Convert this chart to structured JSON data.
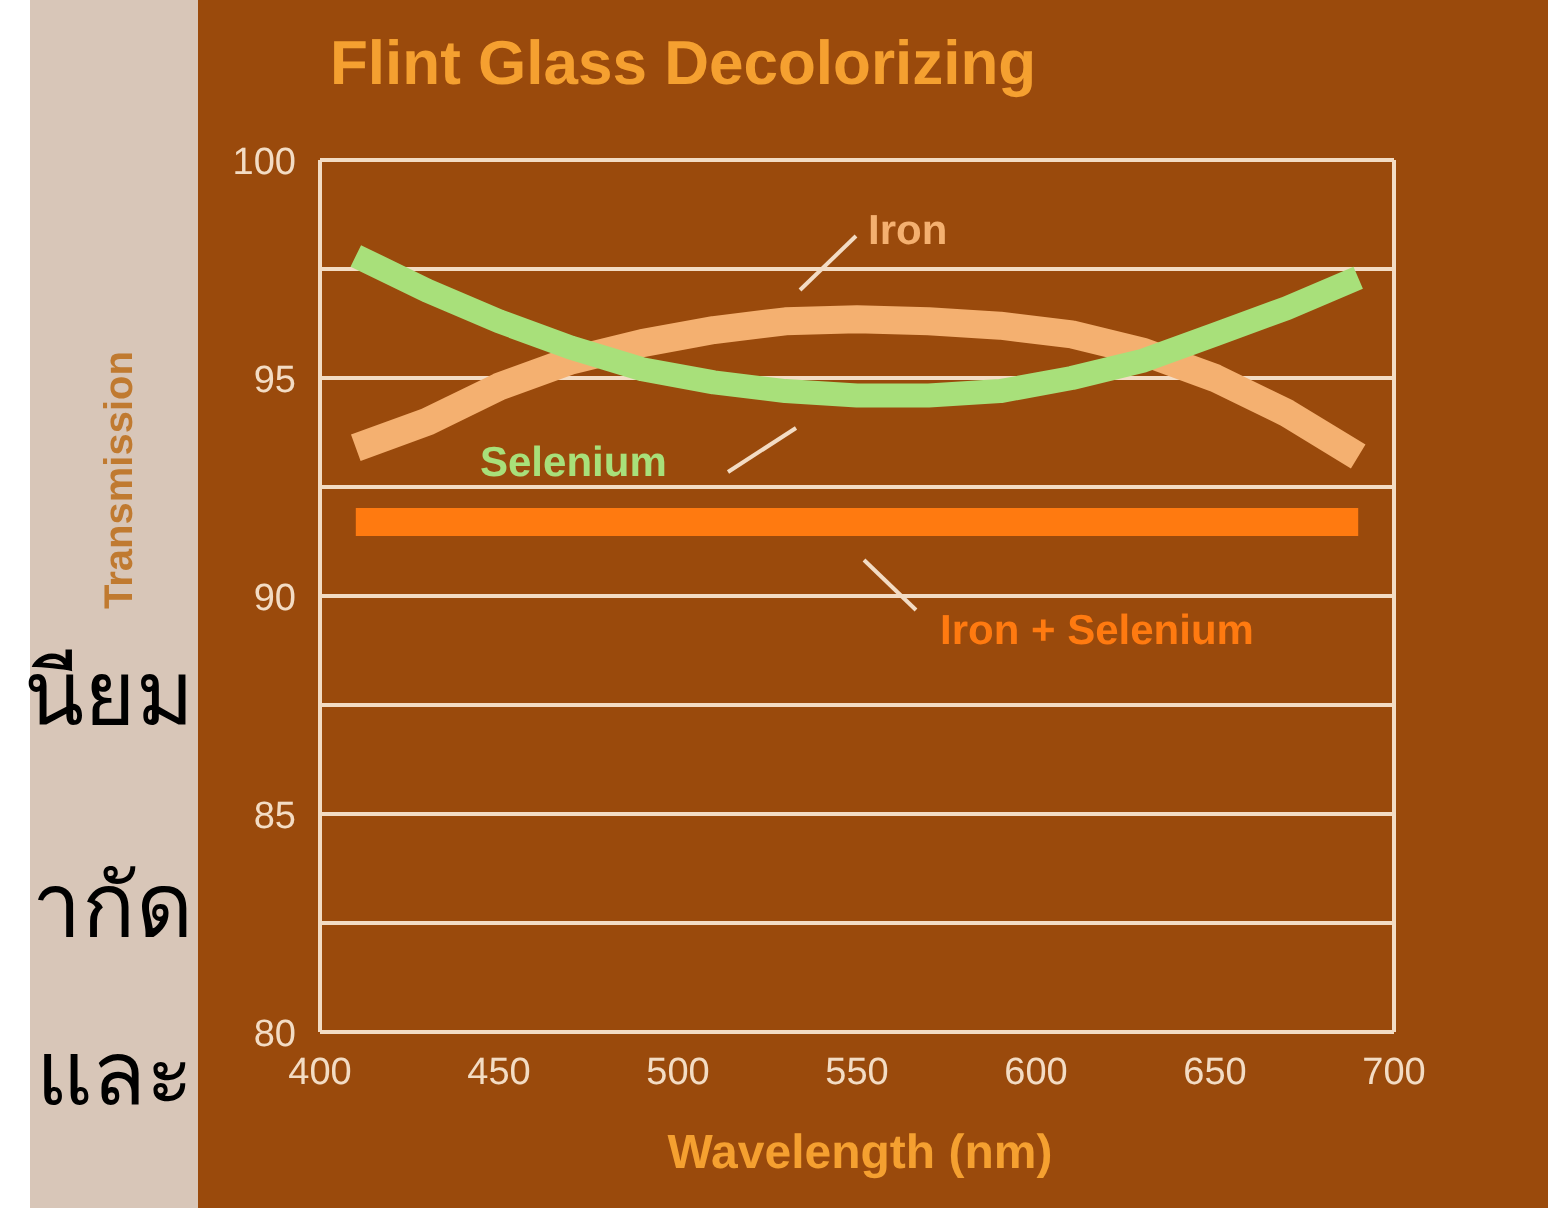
{
  "chart_data": {
    "type": "line",
    "title": "Flint Glass Decolorizing",
    "xlabel": "Wavelength  (nm)",
    "ylabel": "Transmission",
    "x": [
      410,
      430,
      450,
      470,
      490,
      510,
      530,
      550,
      570,
      590,
      610,
      630,
      650,
      670,
      690
    ],
    "series": [
      {
        "name": "Iron",
        "color": "#f4b070",
        "values": [
          93.4,
          94.0,
          94.8,
          95.4,
          95.8,
          96.1,
          96.3,
          96.35,
          96.3,
          96.2,
          96.0,
          95.6,
          95.0,
          94.2,
          93.2
        ]
      },
      {
        "name": "Selenium",
        "color": "#a8e07a",
        "values": [
          97.8,
          97.0,
          96.3,
          95.7,
          95.2,
          94.9,
          94.7,
          94.6,
          94.6,
          94.7,
          95.0,
          95.4,
          96.0,
          96.6,
          97.3
        ]
      },
      {
        "name": "Iron + Selenium",
        "color": "#ff7a10",
        "x": [
          410,
          690
        ],
        "values": [
          91.7,
          91.7
        ]
      }
    ],
    "xlim": [
      400,
      700
    ],
    "ylim": [
      80,
      100
    ],
    "xticks": [
      400,
      450,
      500,
      550,
      600,
      650,
      700
    ],
    "yticks": [
      80,
      {
        "value": 82.5,
        "label": null
      },
      85,
      {
        "value": 87.5,
        "label": null
      },
      90,
      {
        "value": 92.5,
        "label": null
      },
      95,
      {
        "value": 97.5,
        "label": null
      },
      100
    ],
    "grid": "y",
    "marker": "none",
    "line_style": "solid",
    "annotations": [
      "นียม",
      "ากัด",
      "และ"
    ]
  }
}
